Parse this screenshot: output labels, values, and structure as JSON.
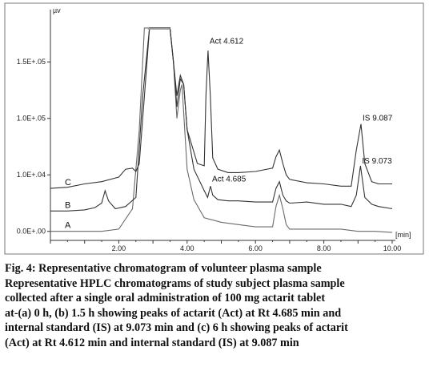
{
  "chart_data": {
    "type": "line",
    "xlabel": "[min]",
    "ylabel": "µv",
    "xlim": [
      0.0,
      10.0
    ],
    "ylim": [
      -0.08,
      1.92
    ],
    "x_ticks": [
      {
        "value": 2,
        "label": "2.00"
      },
      {
        "value": 4,
        "label": "4.00"
      },
      {
        "value": 6,
        "label": "6.00"
      },
      {
        "value": 8,
        "label": "8.00"
      },
      {
        "value": 10,
        "label": "10.00"
      }
    ],
    "y_ticks": [
      {
        "value": 0.0,
        "label": "0.0E+.00"
      },
      {
        "value": 0.5,
        "label": "1.0E+.04"
      },
      {
        "value": 1.0,
        "label": "1.0E+.05"
      },
      {
        "value": 1.5,
        "label": "1.5E+.05"
      }
    ],
    "series": [
      {
        "name": "A",
        "x": [
          0.0,
          0.5,
          1.0,
          1.5,
          2.0,
          2.4,
          2.6,
          2.75,
          2.9,
          3.2,
          3.5,
          3.6,
          3.7,
          3.8,
          3.85,
          3.9,
          4.0,
          4.2,
          4.5,
          5.0,
          5.5,
          6.0,
          6.5,
          6.6,
          6.7,
          6.8,
          6.9,
          7.0,
          7.5,
          8.0,
          8.5,
          9.0,
          9.5,
          10.0
        ],
        "y": [
          0.0,
          0.0,
          0.0,
          0.0,
          0.02,
          0.2,
          0.9,
          1.8,
          1.8,
          1.8,
          1.8,
          1.5,
          1.0,
          1.25,
          1.3,
          1.05,
          0.55,
          0.28,
          0.12,
          0.08,
          0.06,
          0.04,
          0.04,
          0.22,
          0.32,
          0.2,
          0.06,
          0.02,
          0.02,
          0.02,
          0.02,
          0.0,
          0.0,
          -0.01
        ]
      },
      {
        "name": "B",
        "x": [
          0.0,
          0.5,
          1.0,
          1.3,
          1.5,
          1.6,
          1.7,
          1.9,
          2.2,
          2.5,
          2.7,
          2.9,
          3.2,
          3.5,
          3.6,
          3.7,
          3.8,
          3.9,
          4.0,
          4.2,
          4.5,
          4.6,
          4.685,
          4.75,
          4.9,
          5.2,
          5.5,
          6.0,
          6.5,
          6.6,
          6.7,
          6.8,
          6.9,
          7.0,
          7.5,
          8.0,
          8.5,
          8.8,
          8.95,
          9.073,
          9.2,
          9.4,
          9.6,
          10.0
        ],
        "y": [
          0.18,
          0.18,
          0.19,
          0.21,
          0.25,
          0.36,
          0.27,
          0.2,
          0.22,
          0.3,
          1.2,
          1.8,
          1.8,
          1.8,
          1.5,
          1.1,
          1.35,
          1.3,
          0.9,
          0.55,
          0.36,
          0.3,
          0.4,
          0.32,
          0.28,
          0.27,
          0.27,
          0.26,
          0.26,
          0.38,
          0.44,
          0.32,
          0.27,
          0.25,
          0.26,
          0.24,
          0.24,
          0.22,
          0.32,
          0.58,
          0.3,
          0.24,
          0.22,
          0.2
        ]
      },
      {
        "name": "C",
        "x": [
          0.0,
          0.5,
          1.0,
          1.5,
          2.0,
          2.2,
          2.4,
          2.5,
          2.6,
          2.7,
          2.8,
          2.9,
          3.2,
          3.5,
          3.6,
          3.7,
          3.8,
          3.9,
          4.0,
          4.3,
          4.5,
          4.55,
          4.612,
          4.68,
          4.75,
          4.9,
          5.2,
          5.5,
          6.0,
          6.5,
          6.6,
          6.7,
          6.8,
          6.9,
          7.0,
          7.5,
          8.0,
          8.5,
          8.8,
          8.95,
          9.087,
          9.2,
          9.4,
          9.6,
          10.0
        ],
        "y": [
          0.38,
          0.39,
          0.42,
          0.44,
          0.48,
          0.55,
          0.56,
          0.53,
          0.6,
          1.0,
          1.4,
          1.8,
          1.8,
          1.8,
          1.5,
          1.2,
          1.38,
          1.3,
          0.9,
          0.6,
          0.58,
          1.2,
          1.6,
          1.2,
          0.65,
          0.55,
          0.52,
          0.52,
          0.53,
          0.56,
          0.66,
          0.72,
          0.6,
          0.5,
          0.46,
          0.43,
          0.42,
          0.4,
          0.4,
          0.72,
          0.95,
          0.6,
          0.44,
          0.42,
          0.42
        ]
      }
    ],
    "annotations": [
      {
        "text": "Act 4.612",
        "x": 4.612,
        "y": 1.66
      },
      {
        "text": "Act 4.685",
        "x": 4.685,
        "y": 0.44
      },
      {
        "text": "IS 9.087",
        "x": 9.087,
        "y": 0.98
      },
      {
        "text": "IS 9.073",
        "x": 9.073,
        "y": 0.6
      }
    ]
  },
  "caption": {
    "line1": "Fig. 4:  Representative chromatogram of volunteer plasma sample",
    "line2": "Representative HPLC chromatograms of study subject plasma sample",
    "line3": "collected after a single oral administration of 100 mg actarit tablet",
    "line4": "at-(a) 0 h, (b) 1.5 h showing peaks of actarit (Act) at Rt 4.685 min and",
    "line5": "internal standard (IS) at 9.073 min and (c) 6 h showing peaks of actarit",
    "line6": "(Act) at Rt 4.612 min and internal standard (IS) at 9.087 min"
  }
}
